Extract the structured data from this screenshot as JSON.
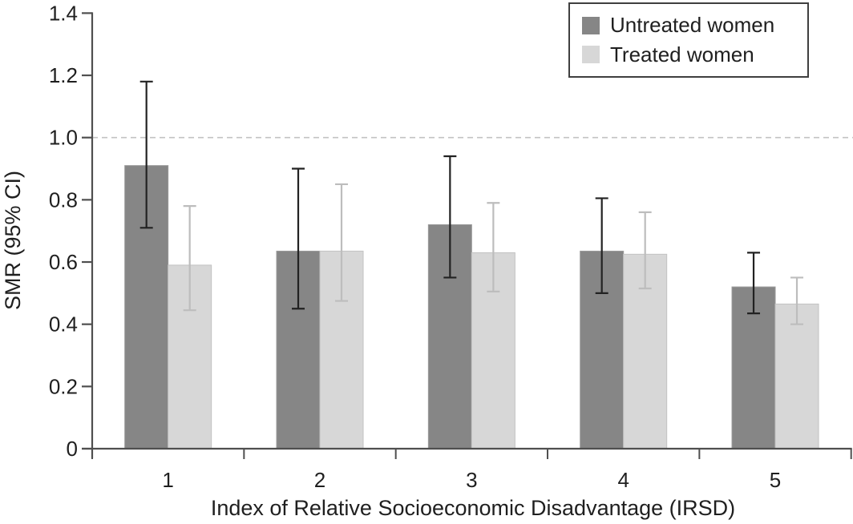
{
  "chart_data": {
    "type": "bar",
    "title": "",
    "xlabel": "Index of Relative Socioeconomic Disadvantage (IRSD)",
    "ylabel": "SMR (95% CI)",
    "categories": [
      "1",
      "2",
      "3",
      "4",
      "5"
    ],
    "series": [
      {
        "name": "Untreated women",
        "color": "#868686",
        "border_color": "#9a9a9a",
        "error_color": "#222222",
        "values": [
          0.91,
          0.635,
          0.72,
          0.635,
          0.52
        ],
        "ci_low": [
          0.71,
          0.45,
          0.55,
          0.5,
          0.435
        ],
        "ci_high": [
          1.18,
          0.9,
          0.94,
          0.805,
          0.63
        ]
      },
      {
        "name": "Treated women",
        "color": "#d7d7d7",
        "border_color": "#c2c2c2",
        "error_color": "#bdbdbd",
        "values": [
          0.59,
          0.635,
          0.63,
          0.625,
          0.465
        ],
        "ci_low": [
          0.445,
          0.475,
          0.505,
          0.515,
          0.4
        ],
        "ci_high": [
          0.78,
          0.85,
          0.79,
          0.76,
          0.55
        ]
      }
    ],
    "ylim": [
      0,
      1.4
    ],
    "y_ticks": [
      {
        "value": 0,
        "label": "0"
      },
      {
        "value": 0.2,
        "label": "0.2"
      },
      {
        "value": 0.4,
        "label": "0.4"
      },
      {
        "value": 0.6,
        "label": "0.6"
      },
      {
        "value": 0.8,
        "label": "0.8"
      },
      {
        "value": 1.0,
        "label": "1.0"
      },
      {
        "value": 1.2,
        "label": "1.2"
      },
      {
        "value": 1.4,
        "label": "1.4"
      }
    ],
    "reference_line": {
      "value": 1.0,
      "style": "dashed",
      "color": "#c3c3c3"
    },
    "grid": "off",
    "legend": {
      "position": "top-right",
      "entries": [
        "Untreated women",
        "Treated women"
      ]
    },
    "axis_color": "#4f4f4f",
    "text_color": "#1f1f1f"
  }
}
